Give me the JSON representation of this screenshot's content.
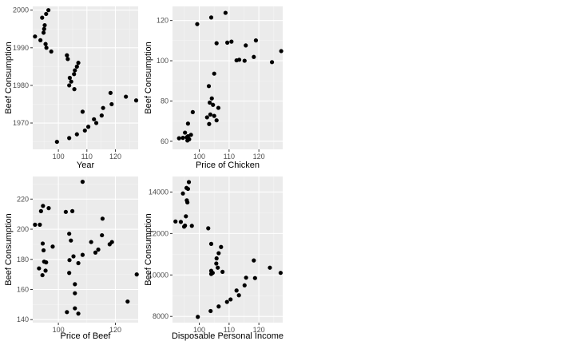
{
  "chart_data": [
    {
      "type": "scatter",
      "xlabel": "Year",
      "ylabel": "Beef Consumption",
      "xlim": [
        91,
        128
      ],
      "ylim": [
        1963,
        2001
      ],
      "x_ticks": [
        100,
        110,
        120
      ],
      "y_ticks": [
        1970,
        1980,
        1990,
        2000
      ],
      "grid": true,
      "points": [
        {
          "x": 96.5,
          "y": 2000
        },
        {
          "x": 95.7,
          "y": 1999
        },
        {
          "x": 94.3,
          "y": 1998
        },
        {
          "x": 95.2,
          "y": 1996
        },
        {
          "x": 95.0,
          "y": 1995
        },
        {
          "x": 94.8,
          "y": 1994
        },
        {
          "x": 91.8,
          "y": 1993
        },
        {
          "x": 93.7,
          "y": 1992
        },
        {
          "x": 95.5,
          "y": 1991
        },
        {
          "x": 95.8,
          "y": 1990
        },
        {
          "x": 97.5,
          "y": 1989
        },
        {
          "x": 103.0,
          "y": 1988
        },
        {
          "x": 103.3,
          "y": 1987
        },
        {
          "x": 107.0,
          "y": 1986
        },
        {
          "x": 106.5,
          "y": 1985
        },
        {
          "x": 105.8,
          "y": 1984
        },
        {
          "x": 105.5,
          "y": 1983
        },
        {
          "x": 104.0,
          "y": 1982
        },
        {
          "x": 104.5,
          "y": 1981
        },
        {
          "x": 103.8,
          "y": 1980
        },
        {
          "x": 105.6,
          "y": 1979
        },
        {
          "x": 118.3,
          "y": 1978
        },
        {
          "x": 123.7,
          "y": 1977
        },
        {
          "x": 127.3,
          "y": 1976
        },
        {
          "x": 118.7,
          "y": 1975
        },
        {
          "x": 115.7,
          "y": 1974
        },
        {
          "x": 108.5,
          "y": 1973
        },
        {
          "x": 115.2,
          "y": 1972
        },
        {
          "x": 112.5,
          "y": 1971
        },
        {
          "x": 113.3,
          "y": 1970
        },
        {
          "x": 110.5,
          "y": 1969
        },
        {
          "x": 109.3,
          "y": 1968
        },
        {
          "x": 106.5,
          "y": 1967
        },
        {
          "x": 103.8,
          "y": 1966
        },
        {
          "x": 99.5,
          "y": 1965
        }
      ]
    },
    {
      "type": "scatter",
      "xlabel": "Price of Chicken",
      "ylabel": "Beef Consumption",
      "xlim": [
        91,
        128
      ],
      "ylim": [
        56,
        127
      ],
      "x_ticks": [
        100,
        110,
        120
      ],
      "y_ticks": [
        60,
        80,
        100,
        120
      ],
      "grid": true,
      "points": [
        {
          "x": 104.0,
          "y": 121.5
        },
        {
          "x": 108.8,
          "y": 123.8
        },
        {
          "x": 99.3,
          "y": 118.2
        },
        {
          "x": 119.0,
          "y": 110.1
        },
        {
          "x": 110.8,
          "y": 109.5
        },
        {
          "x": 109.4,
          "y": 109.0
        },
        {
          "x": 105.8,
          "y": 108.7
        },
        {
          "x": 115.6,
          "y": 107.6
        },
        {
          "x": 127.5,
          "y": 104.8
        },
        {
          "x": 118.3,
          "y": 101.9
        },
        {
          "x": 113.4,
          "y": 100.5
        },
        {
          "x": 112.5,
          "y": 100.2
        },
        {
          "x": 115.2,
          "y": 100.0
        },
        {
          "x": 124.4,
          "y": 99.3
        },
        {
          "x": 105.0,
          "y": 93.6
        },
        {
          "x": 103.2,
          "y": 87.4
        },
        {
          "x": 104.2,
          "y": 81.3
        },
        {
          "x": 103.5,
          "y": 79.2
        },
        {
          "x": 104.6,
          "y": 78.1
        },
        {
          "x": 106.4,
          "y": 76.6
        },
        {
          "x": 97.8,
          "y": 74.5
        },
        {
          "x": 103.7,
          "y": 73.3
        },
        {
          "x": 105.0,
          "y": 72.6
        },
        {
          "x": 102.6,
          "y": 71.9
        },
        {
          "x": 105.8,
          "y": 70.4
        },
        {
          "x": 103.3,
          "y": 68.6
        },
        {
          "x": 96.2,
          "y": 68.8
        },
        {
          "x": 95.2,
          "y": 64.3
        },
        {
          "x": 97.2,
          "y": 63.2
        },
        {
          "x": 96.2,
          "y": 62.5
        },
        {
          "x": 95.8,
          "y": 62.0
        },
        {
          "x": 94.5,
          "y": 61.7
        },
        {
          "x": 93.2,
          "y": 61.5
        },
        {
          "x": 96.6,
          "y": 61.0
        },
        {
          "x": 96.0,
          "y": 60.4
        }
      ]
    },
    {
      "type": "scatter",
      "xlabel": "Price of Beef",
      "ylabel": "Beef Consumption",
      "xlim": [
        91,
        128
      ],
      "ylim": [
        138,
        235
      ],
      "x_ticks": [
        100,
        120
      ],
      "y_ticks": [
        140,
        160,
        180,
        200,
        220
      ],
      "grid": true,
      "points": [
        {
          "x": 108.5,
          "y": 231.5
        },
        {
          "x": 94.6,
          "y": 215.5
        },
        {
          "x": 96.6,
          "y": 214.0
        },
        {
          "x": 93.9,
          "y": 212.0
        },
        {
          "x": 104.9,
          "y": 212.0
        },
        {
          "x": 102.6,
          "y": 211.5
        },
        {
          "x": 115.5,
          "y": 207.0
        },
        {
          "x": 91.8,
          "y": 203.0
        },
        {
          "x": 93.5,
          "y": 203.0
        },
        {
          "x": 103.8,
          "y": 197.0
        },
        {
          "x": 115.3,
          "y": 196.0
        },
        {
          "x": 104.4,
          "y": 192.5
        },
        {
          "x": 111.5,
          "y": 191.5
        },
        {
          "x": 118.8,
          "y": 191.5
        },
        {
          "x": 94.5,
          "y": 190.5
        },
        {
          "x": 118.0,
          "y": 190.0
        },
        {
          "x": 98.0,
          "y": 188.5
        },
        {
          "x": 94.8,
          "y": 186.0
        },
        {
          "x": 114.0,
          "y": 186.5
        },
        {
          "x": 113.0,
          "y": 184.5
        },
        {
          "x": 108.5,
          "y": 183.0
        },
        {
          "x": 105.3,
          "y": 182.0
        },
        {
          "x": 103.9,
          "y": 179.5
        },
        {
          "x": 95.0,
          "y": 178.5
        },
        {
          "x": 95.7,
          "y": 178.0
        },
        {
          "x": 107.0,
          "y": 177.5
        },
        {
          "x": 93.2,
          "y": 174.0
        },
        {
          "x": 95.5,
          "y": 172.5
        },
        {
          "x": 94.4,
          "y": 169.5
        },
        {
          "x": 103.8,
          "y": 171.0
        },
        {
          "x": 127.5,
          "y": 170.0
        },
        {
          "x": 105.8,
          "y": 163.5
        },
        {
          "x": 105.8,
          "y": 157.5
        },
        {
          "x": 124.3,
          "y": 152.0
        },
        {
          "x": 105.8,
          "y": 147.5
        },
        {
          "x": 103.0,
          "y": 145.0
        },
        {
          "x": 107.0,
          "y": 144.0
        }
      ]
    },
    {
      "type": "scatter",
      "xlabel": "Disposable Personal Income",
      "ylabel": "Beef Consumption",
      "xlim": [
        91,
        128
      ],
      "ylim": [
        7700,
        14750
      ],
      "x_ticks": [
        100,
        110,
        120
      ],
      "y_ticks": [
        8000,
        10000,
        12000,
        14000
      ],
      "grid": true,
      "points": [
        {
          "x": 96.5,
          "y": 14480
        },
        {
          "x": 95.7,
          "y": 14200
        },
        {
          "x": 96.2,
          "y": 14150
        },
        {
          "x": 94.5,
          "y": 13930
        },
        {
          "x": 95.8,
          "y": 13600
        },
        {
          "x": 96.0,
          "y": 13500
        },
        {
          "x": 92.0,
          "y": 12580
        },
        {
          "x": 93.8,
          "y": 12560
        },
        {
          "x": 95.5,
          "y": 12830
        },
        {
          "x": 97.5,
          "y": 12370
        },
        {
          "x": 95.2,
          "y": 12380
        },
        {
          "x": 94.9,
          "y": 12330
        },
        {
          "x": 103.0,
          "y": 12250
        },
        {
          "x": 104.0,
          "y": 11500
        },
        {
          "x": 107.3,
          "y": 11350
        },
        {
          "x": 106.5,
          "y": 11050
        },
        {
          "x": 105.8,
          "y": 10800
        },
        {
          "x": 105.7,
          "y": 10550
        },
        {
          "x": 106.2,
          "y": 10350
        },
        {
          "x": 104.0,
          "y": 10200
        },
        {
          "x": 104.5,
          "y": 10100
        },
        {
          "x": 104.0,
          "y": 10050
        },
        {
          "x": 107.8,
          "y": 10150
        },
        {
          "x": 118.3,
          "y": 10700
        },
        {
          "x": 123.7,
          "y": 10350
        },
        {
          "x": 127.3,
          "y": 10100
        },
        {
          "x": 118.7,
          "y": 9850
        },
        {
          "x": 115.7,
          "y": 9870
        },
        {
          "x": 115.2,
          "y": 9500
        },
        {
          "x": 112.5,
          "y": 9250
        },
        {
          "x": 113.3,
          "y": 9020
        },
        {
          "x": 110.5,
          "y": 8820
        },
        {
          "x": 109.3,
          "y": 8700
        },
        {
          "x": 106.5,
          "y": 8480
        },
        {
          "x": 103.8,
          "y": 8260
        },
        {
          "x": 99.5,
          "y": 7980
        }
      ]
    }
  ]
}
